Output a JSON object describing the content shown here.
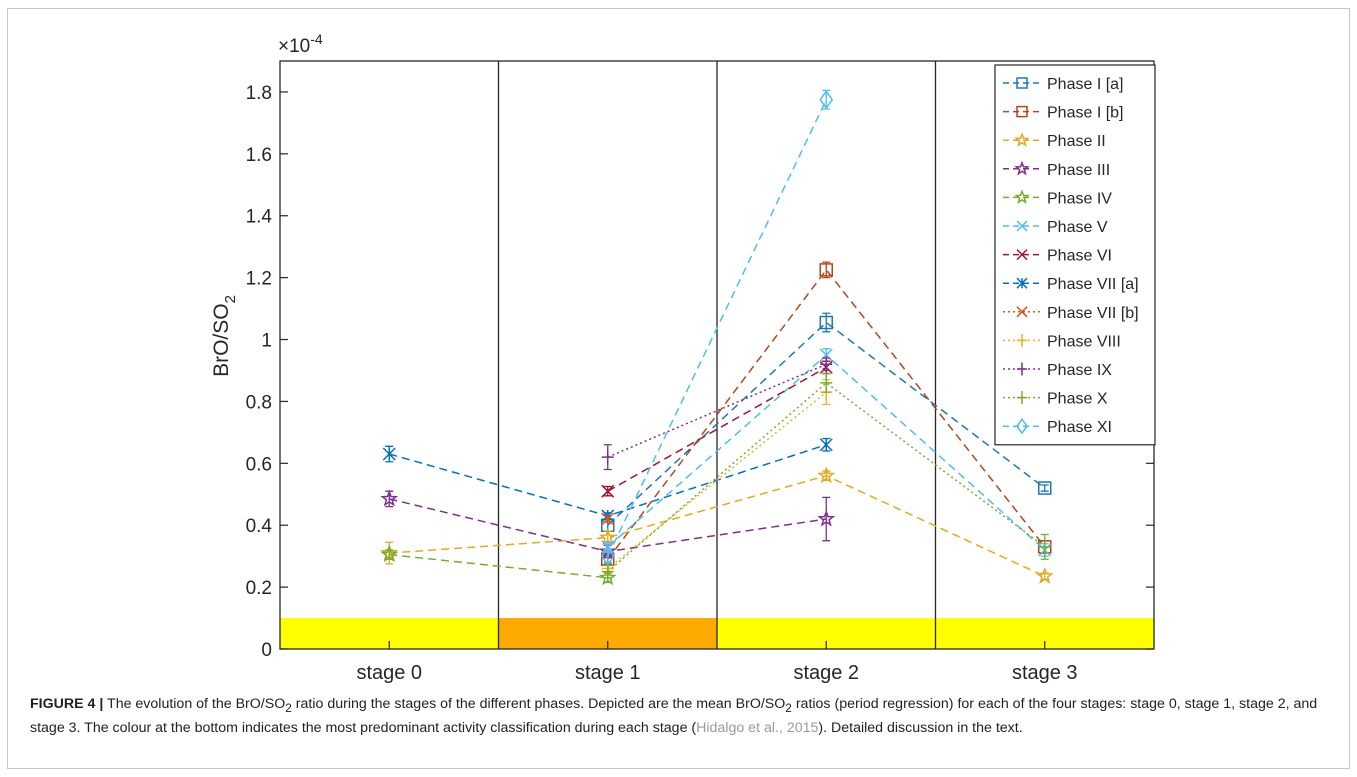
{
  "chart_data": {
    "type": "line",
    "exponent_label": "×10",
    "exponent_power": "-4",
    "ylabel": "BrO/SO",
    "ylabel_sub": "2",
    "ylim": [
      0,
      1.9
    ],
    "yticks": [
      0,
      0.2,
      0.4,
      0.6,
      0.8,
      1,
      1.2,
      1.4,
      1.6,
      1.8
    ],
    "ytick_labels": [
      "0",
      "0.2",
      "0.4",
      "0.6",
      "0.8",
      "1",
      "1.2",
      "1.4",
      "1.6",
      "1.8"
    ],
    "categories": [
      "stage 0",
      "stage 1",
      "stage 2",
      "stage 3"
    ],
    "stage_bands": [
      {
        "stage": "stage 0",
        "color": "#ffff00"
      },
      {
        "stage": "stage 1",
        "color": "#ffaa00"
      },
      {
        "stage": "stage 2",
        "color": "#ffff00"
      },
      {
        "stage": "stage 3",
        "color": "#ffff00"
      }
    ],
    "band_ylim": [
      0,
      0.1
    ],
    "legend_position": "top-right",
    "series": [
      {
        "name": "Phase I [a]",
        "color": "#1f77b4",
        "marker": "square",
        "dash": "dashed",
        "values": [
          null,
          0.4,
          1.055,
          0.52
        ],
        "err": [
          null,
          0.02,
          0.03,
          0.01
        ]
      },
      {
        "name": "Phase I [b]",
        "color": "#b5451b",
        "marker": "square",
        "dash": "dashed",
        "values": [
          null,
          0.29,
          1.225,
          0.33
        ],
        "err": [
          null,
          0.015,
          0.025,
          0.02
        ]
      },
      {
        "name": "Phase II",
        "color": "#e6a820",
        "marker": "star",
        "dash": "dashed",
        "values": [
          0.31,
          0.36,
          0.56,
          0.235
        ],
        "err": [
          0.035,
          0.02,
          0.015,
          0.01
        ]
      },
      {
        "name": "Phase III",
        "color": "#7e2f8e",
        "marker": "star",
        "dash": "dashed",
        "values": [
          0.485,
          0.315,
          0.42,
          null
        ],
        "err": [
          0.025,
          0.02,
          0.07,
          null
        ]
      },
      {
        "name": "Phase IV",
        "color": "#77ac30",
        "marker": "star",
        "dash": "dashed",
        "values": [
          0.305,
          0.23,
          null,
          null
        ],
        "err": [
          0.015,
          0.015,
          null,
          null
        ]
      },
      {
        "name": "Phase V",
        "color": "#4dbeee",
        "marker": "x",
        "dash": "dashed",
        "values": [
          null,
          0.33,
          0.95,
          0.32
        ],
        "err": [
          null,
          0.015,
          0.02,
          0.02
        ]
      },
      {
        "name": "Phase VI",
        "color": "#a2142f",
        "marker": "x",
        "dash": "dashed",
        "values": [
          null,
          0.51,
          0.91,
          null
        ],
        "err": [
          null,
          0.015,
          0.02,
          null
        ]
      },
      {
        "name": "Phase VII [a]",
        "color": "#0072bd",
        "marker": "asterisk",
        "dash": "dashed",
        "values": [
          0.63,
          0.43,
          0.66,
          null
        ],
        "err": [
          0.025,
          0.01,
          0.02,
          null
        ]
      },
      {
        "name": "Phase VII [b]",
        "color": "#d95319",
        "marker": "x",
        "dash": "dotted",
        "values": [
          null,
          0.42,
          null,
          null
        ],
        "err": [
          null,
          0.01,
          null,
          null
        ]
      },
      {
        "name": "Phase VIII",
        "color": "#edb120",
        "marker": "plus",
        "dash": "dotted",
        "values": [
          null,
          0.26,
          0.83,
          null
        ],
        "err": [
          null,
          0.02,
          0.04,
          null
        ]
      },
      {
        "name": "Phase IX",
        "color": "#7e2f8e",
        "marker": "plus",
        "dash": "dotted",
        "values": [
          null,
          0.62,
          0.92,
          null
        ],
        "err": [
          null,
          0.04,
          0.02,
          null
        ]
      },
      {
        "name": "Phase X",
        "color": "#77ac30",
        "marker": "plus",
        "dash": "dotted",
        "values": [
          null,
          0.25,
          0.86,
          0.33
        ],
        "err": [
          null,
          0.02,
          0.03,
          0.04
        ]
      },
      {
        "name": "Phase XI",
        "color": "#4dbeee",
        "marker": "diamond",
        "dash": "dashed",
        "values": [
          null,
          0.3,
          1.775,
          null
        ],
        "err": [
          null,
          0.02,
          0.03,
          null
        ]
      }
    ]
  },
  "caption": {
    "label": "FIGURE 4 |",
    "text_1": " The evolution of the BrO/SO",
    "sub_1": "2",
    "text_2": " ratio during the stages of the different phases. Depicted are the mean BrO/SO",
    "sub_2": "2",
    "text_3": " ratios (period regression) for each of the four stages: stage 0, stage 1, stage 2, and stage 3. The colour at the bottom indicates the most predominant activity classification during each stage (",
    "citation": "Hidalgo et al., 2015",
    "text_4": "). Detailed discussion in the text."
  }
}
